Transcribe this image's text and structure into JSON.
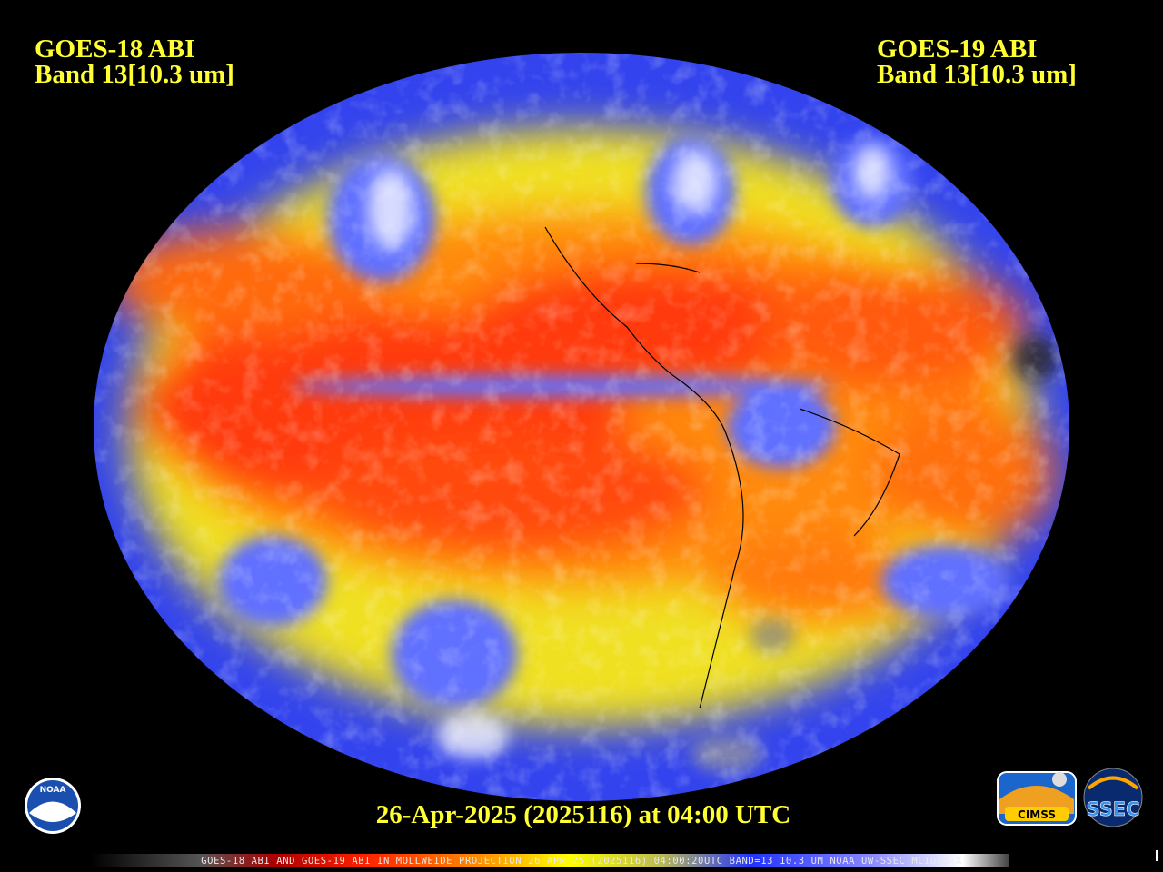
{
  "header": {
    "left": {
      "satellite": "GOES-18 ABI",
      "band": "Band 13[10.3 um]"
    },
    "right": {
      "satellite": "GOES-19 ABI",
      "band": "Band 13[10.3 um]"
    }
  },
  "timestamp": "26-Apr-2025 (2025116) at 04:00 UTC",
  "footer": "GOES-18 ABI AND GOES-19 ABI IN MOLLWEIDE PROJECTION 26 APR 25 (2025116) 04:00:20UTC BAND=13 10.3 UM NOAA UW-SSEC MCIDAS-X",
  "logos": {
    "noaa": "NOAA",
    "cimss": "CIMSS",
    "ssec": "SSEC"
  }
}
